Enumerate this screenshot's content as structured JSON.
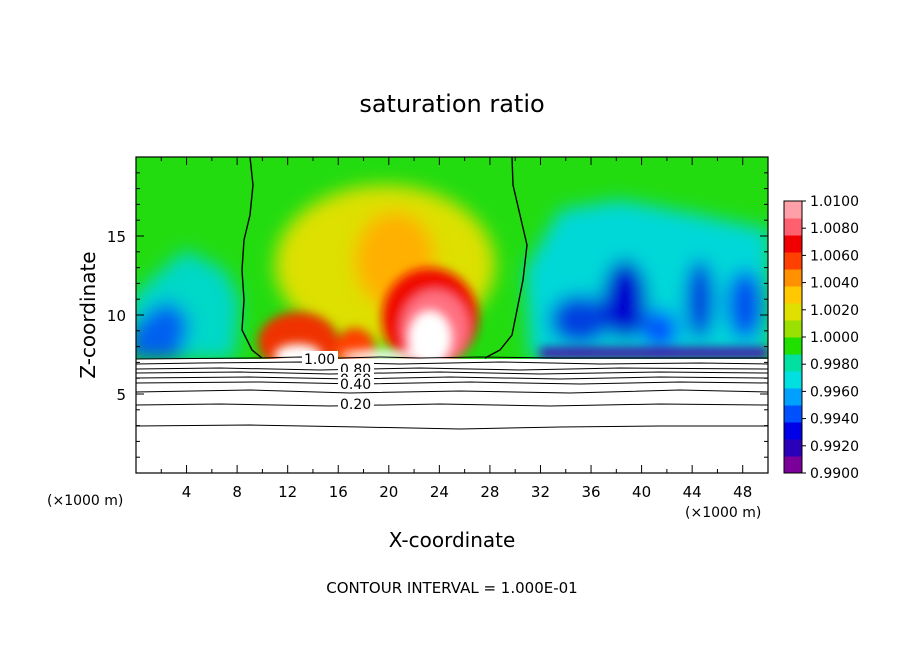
{
  "chart_data": {
    "type": "heatmap",
    "title": "saturation ratio",
    "xlabel": "X-coordinate",
    "ylabel": "Z-coordinate",
    "x_unit_label": "(×1000 m)",
    "y_unit_label": "(×1000 m)",
    "xlim": [
      0,
      50
    ],
    "ylim": [
      0,
      20
    ],
    "x_ticks": [
      4,
      8,
      12,
      16,
      20,
      24,
      28,
      32,
      36,
      40,
      44,
      48
    ],
    "y_ticks": [
      5,
      10,
      15
    ],
    "grid": false,
    "legend": "right colorbar",
    "colorbar": {
      "min": 0.99,
      "max": 1.01,
      "tick_labels": [
        "1.0100",
        "1.0080",
        "1.0060",
        "1.0040",
        "1.0020",
        "1.0000",
        "0.9980",
        "0.9960",
        "0.9940",
        "0.9920",
        "0.9900"
      ],
      "colors": [
        "#7a0099",
        "#2a00b8",
        "#0000e8",
        "#0050ff",
        "#00a0ff",
        "#00e0e0",
        "#00e0a0",
        "#20e000",
        "#9ae000",
        "#e0e000",
        "#ffc800",
        "#ff9000",
        "#ff4000",
        "#f00000",
        "#ff6070",
        "#ffa0a8"
      ]
    },
    "contour_lines": [
      {
        "level": 1.0,
        "label": "1.00"
      },
      {
        "level": 0.8,
        "label": "0.80"
      },
      {
        "level": 0.6,
        "label": "0.60"
      },
      {
        "level": 0.4,
        "label": "0.40"
      },
      {
        "level": 0.2,
        "label": "0.20"
      }
    ],
    "footer": "CONTOUR INTERVAL = 1.000E-01"
  }
}
